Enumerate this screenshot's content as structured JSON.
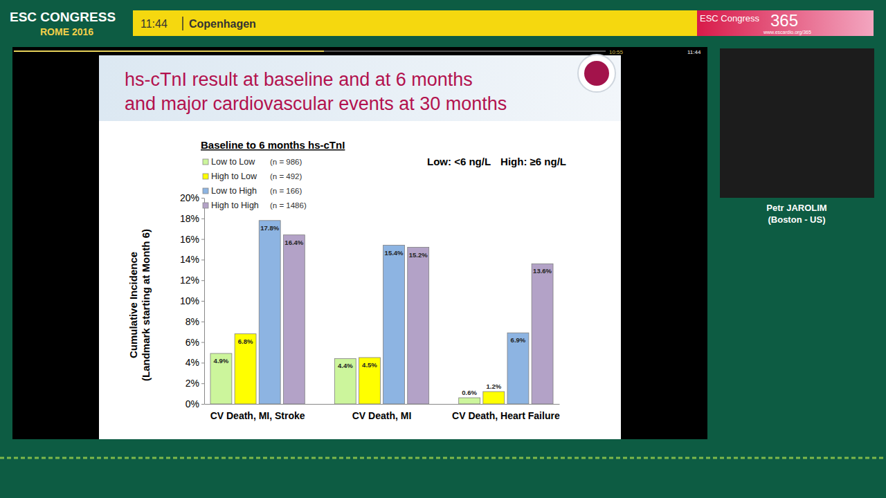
{
  "chart_data": {
    "type": "bar",
    "title": "hs-cTnI result at baseline and at 6 months and major cardiovascular events at 30 months",
    "ylabel": "Cumulative Incidence (Landmark starting at Month 6)",
    "legend_title": "Baseline to 6 months hs-cTnI",
    "annotations": [
      "Low: <6 ng/L",
      "High: ≥6 ng/L"
    ],
    "categories": [
      "CV Death, MI, Stroke",
      "CV Death, MI",
      "CV Death, Heart Failure"
    ],
    "series": [
      {
        "name": "Low to Low",
        "n_label": "(n = 986)",
        "color": "#ccf59c",
        "values": [
          4.9,
          4.4,
          0.6
        ],
        "value_labels": [
          "4.9%",
          "4.4%",
          "0.6%"
        ]
      },
      {
        "name": "High to Low",
        "n_label": "(n = 492)",
        "color": "#ffff00",
        "values": [
          6.8,
          4.5,
          1.2
        ],
        "value_labels": [
          "6.8%",
          "4.5%",
          "1.2%"
        ]
      },
      {
        "name": "Low to High",
        "n_label": "(n = 166)",
        "color": "#8db4e2",
        "values": [
          17.8,
          15.4,
          6.9
        ],
        "value_labels": [
          "17.8%",
          "15.4%",
          "6.9%"
        ]
      },
      {
        "name": "High to High",
        "n_label": "(n = 1486)",
        "color": "#b3a2c7",
        "values": [
          16.4,
          15.2,
          13.6
        ],
        "value_labels": [
          "16.4%",
          "15.2%",
          "13.6%"
        ]
      }
    ],
    "ylim": [
      0,
      20
    ],
    "yticks": [
      {
        "value": 0,
        "label": "0%"
      },
      {
        "value": 2,
        "label": "2%"
      },
      {
        "value": 4,
        "label": "4%"
      },
      {
        "value": 6,
        "label": "6%"
      },
      {
        "value": 8,
        "label": "8%"
      },
      {
        "value": 10,
        "label": "10%"
      },
      {
        "value": 12,
        "label": "12%"
      },
      {
        "value": 14,
        "label": "14%"
      },
      {
        "value": 16,
        "label": "16%"
      },
      {
        "value": 18,
        "label": "18%"
      },
      {
        "value": 20,
        "label": "20%"
      }
    ],
    "grid": false,
    "legend": "top-left",
    "data_labels": true
  },
  "frame": {
    "event": "ESC CONGRESS",
    "edition": "ROME 2016",
    "time": "11:44",
    "session": "Copenhagen",
    "brand": "ESC Congress",
    "brand_num": "365",
    "url": "www.escardio.org/365",
    "player_times": [
      "10:55",
      "11:44"
    ],
    "speaker": "Petr JAROLIM",
    "affiliation": "(Boston - US)"
  }
}
